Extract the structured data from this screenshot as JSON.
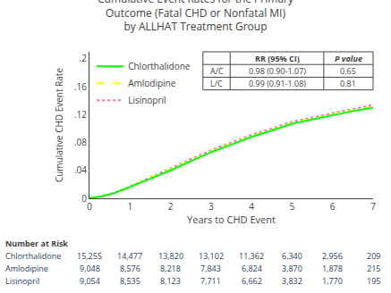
{
  "chart_data": {
    "type": "line",
    "title": "Cumulative Event Rates for the Primary\nOutcome (Fatal CHD or Nonfatal MI)\nby ALLHAT Treatment Group",
    "xlabel": "Years to CHD Event",
    "ylabel": "Cumulative CHD Event Rate",
    "x": [
      0,
      0.3,
      0.6,
      1.0,
      1.5,
      2.0,
      2.5,
      3.0,
      3.5,
      4.0,
      4.5,
      5.0,
      5.5,
      6.0,
      6.5,
      7.0
    ],
    "series": [
      {
        "name": "Chlorthalidone",
        "color": "#00FF00",
        "line_style": "solid",
        "values": [
          0,
          0.003,
          0.007,
          0.016,
          0.028,
          0.04,
          0.053,
          0.066,
          0.077,
          0.088,
          0.097,
          0.107,
          0.113,
          0.119,
          0.125,
          0.13
        ],
        "at_risk": [
          "15,255",
          "14,477",
          "13,820",
          "13,102",
          "11,362",
          "6,340",
          "2,956",
          "209"
        ]
      },
      {
        "name": "Amlodipine",
        "color": "#FFFF00",
        "line_style": "dashed",
        "values": [
          0,
          0.003,
          0.007,
          0.016,
          0.029,
          0.041,
          0.054,
          0.067,
          0.078,
          0.089,
          0.098,
          0.108,
          0.114,
          0.12,
          0.126,
          0.131
        ],
        "at_risk": [
          "9,048",
          "8,576",
          "8,218",
          "7,843",
          "6,824",
          "3,870",
          "1,878",
          "215"
        ]
      },
      {
        "name": "Lisinopril",
        "color": "#FF69B4",
        "line_style": "dotted",
        "values": [
          0,
          0.003,
          0.008,
          0.017,
          0.03,
          0.043,
          0.056,
          0.069,
          0.08,
          0.091,
          0.1,
          0.11,
          0.116,
          0.122,
          0.128,
          0.134
        ],
        "at_risk": [
          "9,054",
          "8,535",
          "8,123",
          "7,711",
          "6,662",
          "3,832",
          "1,770",
          "195"
        ]
      }
    ],
    "xlim": [
      0,
      7
    ],
    "ylim": [
      0,
      0.21
    ],
    "xticks": [
      0,
      1,
      2,
      3,
      4,
      5,
      6,
      7
    ],
    "yticks": [
      0,
      {
        "value": 0.04,
        "label": ".04"
      },
      {
        "value": 0.08,
        "label": ".08"
      },
      {
        "value": 0.12,
        "label": ".12"
      },
      {
        "value": 0.16,
        "label": ".16"
      },
      {
        "value": 0.2,
        "label": ".2"
      }
    ],
    "grid": false,
    "legend": "upper left",
    "table": [
      [
        null,
        "RR (95% CI)",
        "P value"
      ],
      [
        "A/C",
        "0.98 (0.90-1.07)",
        "0.65"
      ],
      [
        "L/C",
        "0.99 (0.91-1.08)",
        "0.81"
      ]
    ],
    "number_at_risk_label": "Number at Risk"
  }
}
